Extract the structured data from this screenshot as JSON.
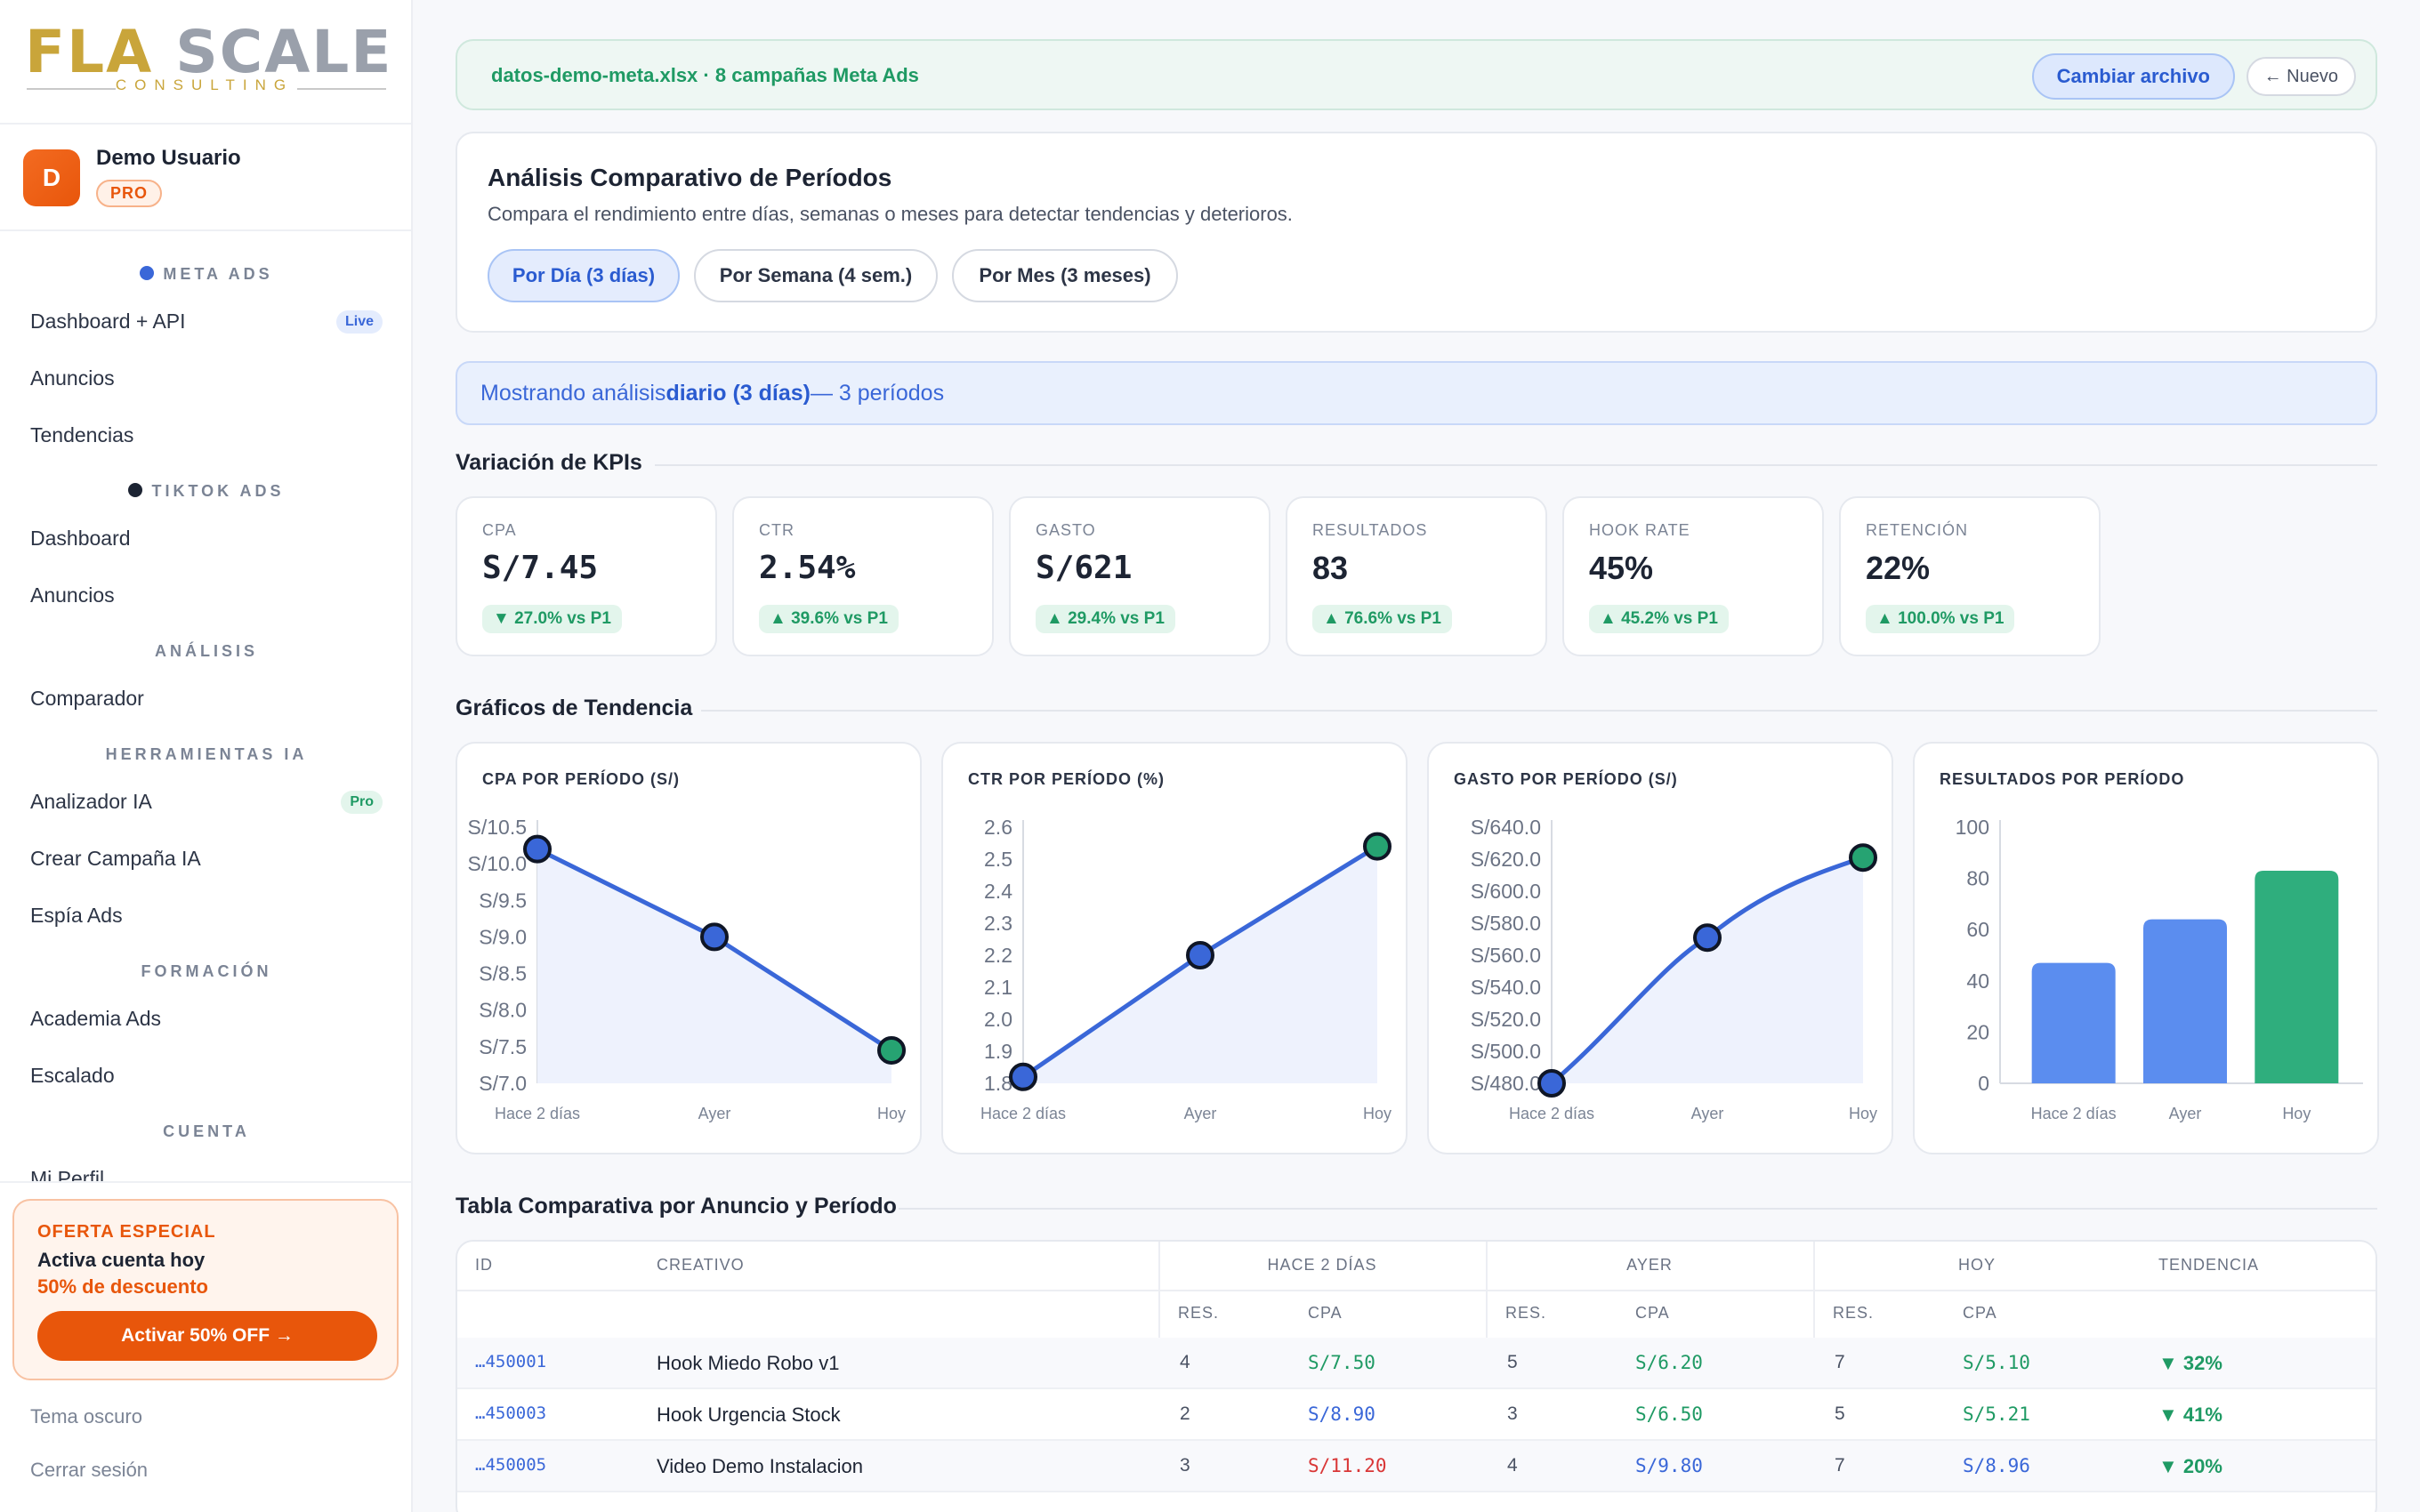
{
  "logo": {
    "word_a": "FLA",
    "word_b": "SCALE",
    "sub": "CONSULTING"
  },
  "user": {
    "initial": "D",
    "name": "Demo Usuario",
    "plan": "PRO"
  },
  "sidebar": {
    "sections": [
      {
        "label": "META ADS",
        "dot_color": "#3a67d8"
      },
      {
        "label": "TIKTOK ADS",
        "dot_color": "#1d2433"
      },
      {
        "label": "ANÁLISIS"
      },
      {
        "label": "HERRAMIENTAS IA"
      },
      {
        "label": "FORMACIÓN"
      },
      {
        "label": "CUENTA"
      }
    ],
    "items": [
      {
        "label": "Dashboard + API",
        "badge": "Live"
      },
      {
        "label": "Anuncios"
      },
      {
        "label": "Tendencias"
      },
      {
        "label": "Dashboard"
      },
      {
        "label": "Anuncios"
      },
      {
        "label": "Comparador"
      },
      {
        "label": "Analizador IA",
        "badge": "Pro"
      },
      {
        "label": "Crear Campaña IA"
      },
      {
        "label": "Espía Ads"
      },
      {
        "label": "Academia Ads"
      },
      {
        "label": "Escalado"
      },
      {
        "label": "Mi Perfil"
      }
    ]
  },
  "promo": {
    "tag": "OFERTA ESPECIAL",
    "line1": "Activa cuenta hoy",
    "line2": "50% de descuento",
    "button": "Activar 50% OFF →"
  },
  "footer": {
    "theme": "Tema oscuro",
    "logout": "Cerrar sesión"
  },
  "filebar": {
    "label": "datos-demo-meta.xlsx · 8 campañas Meta Ads",
    "change": "Cambiar archivo",
    "new": "← Nuevo"
  },
  "compare": {
    "title": "Análisis Comparativo de Períodos",
    "desc": "Compara el rendimiento entre días, semanas o meses para detectar tendencias y deterioros.",
    "buttons": [
      "Por Día (3 días)",
      "Por Semana (4 sem.)",
      "Por Mes (3 meses)"
    ],
    "active": 0
  },
  "showing": {
    "prefix": "Mostrando análisis",
    "bold": "diario (3 días)",
    "suffix": "— 3 períodos"
  },
  "kpi_title": "Variación de KPIs",
  "kpis": [
    {
      "label": "CPA",
      "value": "S/7.45",
      "change": "▼ 27.0% vs P1",
      "mono": true
    },
    {
      "label": "CTR",
      "value": "2.54%",
      "change": "▲ 39.6% vs P1",
      "mono": true
    },
    {
      "label": "GASTO",
      "value": "S/621",
      "change": "▲ 29.4% vs P1",
      "mono": true
    },
    {
      "label": "RESULTADOS",
      "value": "83",
      "change": "▲ 76.6% vs P1"
    },
    {
      "label": "HOOK RATE",
      "value": "45%",
      "change": "▲ 45.2% vs P1"
    },
    {
      "label": "RETENCIÓN",
      "value": "22%",
      "change": "▲ 100.0% vs P1"
    }
  ],
  "charts_title": "Gráficos de Tendencia",
  "chart_data": [
    {
      "type": "line",
      "title": "CPA POR PERÍODO (S/)",
      "categories": [
        "Hace 2 días",
        "Ayer",
        "Hoy"
      ],
      "values": [
        10.2,
        9.0,
        7.45
      ],
      "yticks": [
        "S/10.5",
        "S/10.0",
        "S/9.5",
        "S/9.0",
        "S/8.5",
        "S/8.0",
        "S/7.5",
        "S/7.0"
      ],
      "ylim": [
        7.0,
        10.5
      ]
    },
    {
      "type": "line",
      "title": "CTR POR PERÍODO (%)",
      "categories": [
        "Hace 2 días",
        "Ayer",
        "Hoy"
      ],
      "values": [
        1.82,
        2.2,
        2.54
      ],
      "yticks": [
        "2.6",
        "2.5",
        "2.4",
        "2.3",
        "2.2",
        "2.1",
        "2.0",
        "1.9",
        "1.8"
      ],
      "ylim": [
        1.8,
        2.6
      ]
    },
    {
      "type": "line",
      "title": "GASTO POR PERÍODO (S/)",
      "categories": [
        "Hace 2 días",
        "Ayer",
        "Hoy"
      ],
      "values": [
        480,
        571,
        621
      ],
      "yticks": [
        "S/640.0",
        "S/620.0",
        "S/600.0",
        "S/580.0",
        "S/560.0",
        "S/540.0",
        "S/520.0",
        "S/500.0",
        "S/480.0"
      ],
      "ylim": [
        480,
        640
      ]
    },
    {
      "type": "bar",
      "title": "RESULTADOS POR PERÍODO",
      "categories": [
        "Hace 2 días",
        "Ayer",
        "Hoy"
      ],
      "values": [
        47,
        64,
        83
      ],
      "yticks": [
        "100",
        "80",
        "60",
        "40",
        "20",
        "0"
      ],
      "ylim": [
        0,
        100
      ]
    }
  ],
  "table_title": "Tabla Comparativa por Anuncio y Período",
  "table": {
    "headers": {
      "id": "ID",
      "creative": "CREATIVO",
      "p1": "HACE 2 DÍAS",
      "p2": "AYER",
      "p3": "HOY",
      "trend": "TENDENCIA",
      "res": "RES.",
      "cpa": "CPA"
    },
    "rows": [
      {
        "id": "…450001",
        "name": "Hook Miedo Robo v1",
        "r1": "4",
        "c1": "S/7.50",
        "r2": "5",
        "c2": "S/6.20",
        "r3": "7",
        "c3": "S/5.10",
        "trend": "▼ 32%"
      },
      {
        "id": "…450003",
        "name": "Hook Urgencia Stock",
        "r1": "2",
        "c1": "S/8.90",
        "r2": "3",
        "c2": "S/6.50",
        "r3": "5",
        "c3": "S/5.21",
        "trend": "▼ 41%"
      },
      {
        "id": "…450005",
        "name": "Video Demo Instalacion",
        "r1": "3",
        "c1": "S/11.20",
        "r2": "4",
        "c2": "S/9.80",
        "r3": "7",
        "c3": "S/8.96",
        "trend": "▼ 20%"
      }
    ]
  },
  "colors": {
    "blue": "#3a67d8",
    "green": "#1f9a64",
    "red": "#d93636",
    "orange": "#e8560b"
  }
}
